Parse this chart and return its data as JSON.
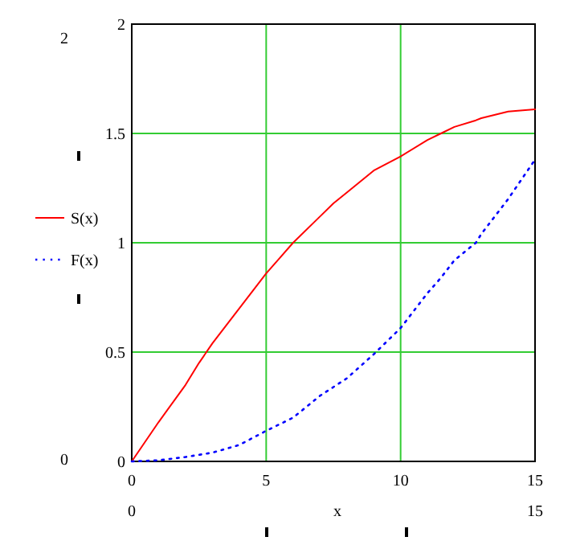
{
  "chart_data": {
    "type": "line",
    "xlabel": "x",
    "x": [
      0,
      1,
      2,
      2.5,
      3,
      4,
      5,
      5.5,
      6,
      7,
      7.5,
      8,
      9,
      10,
      11,
      11.5,
      12,
      12.8,
      13,
      14,
      15
    ],
    "series": [
      {
        "name": "S(x)",
        "color": "#ff0000",
        "line_style": "solid",
        "values": [
          0,
          0.18,
          0.35,
          0.45,
          0.54,
          0.7,
          0.86,
          0.93,
          1.0,
          1.12,
          1.18,
          1.23,
          1.33,
          1.395,
          1.47,
          1.5,
          1.53,
          1.56,
          1.57,
          1.6,
          1.61
        ]
      },
      {
        "name": "F(x)",
        "color": "#0000ff",
        "line_style": "dotted",
        "values": [
          0,
          0.005,
          0.02,
          0.03,
          0.04,
          0.075,
          0.14,
          0.17,
          0.2,
          0.3,
          0.34,
          0.38,
          0.49,
          0.61,
          0.77,
          0.84,
          0.92,
          1.0,
          1.04,
          1.2,
          1.38
        ]
      }
    ],
    "xlim": [
      0,
      15
    ],
    "xticks": [
      0,
      5,
      10,
      15
    ],
    "ylim": [
      0,
      2
    ],
    "yticks": [
      0,
      0.5,
      1,
      1.5,
      2
    ],
    "grid": true,
    "legend": "left",
    "marker": "none",
    "annotations": [
      "2",
      "0",
      "0",
      "15"
    ]
  }
}
